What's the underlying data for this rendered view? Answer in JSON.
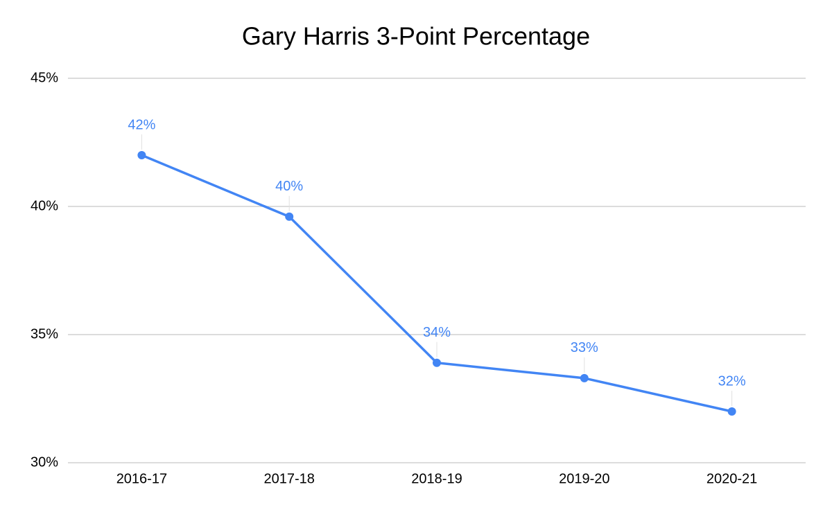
{
  "chart_data": {
    "type": "line",
    "title": "Gary Harris 3-Point Percentage",
    "categories": [
      "2016-17",
      "2017-18",
      "2018-19",
      "2019-20",
      "2020-21"
    ],
    "series": [
      {
        "name": "3-Point Percentage",
        "color": "#4285f4",
        "values": [
          42.0,
          39.6,
          33.9,
          33.3,
          32.0
        ],
        "value_labels": [
          "42%",
          "40%",
          "34%",
          "33%",
          "32%"
        ]
      }
    ],
    "ylim": [
      30,
      45
    ],
    "yticks": [
      {
        "value": 30,
        "label": "30%"
      },
      {
        "value": 35,
        "label": "35%"
      },
      {
        "value": 40,
        "label": "40%"
      },
      {
        "value": 45,
        "label": "45%"
      }
    ],
    "grid": true
  }
}
